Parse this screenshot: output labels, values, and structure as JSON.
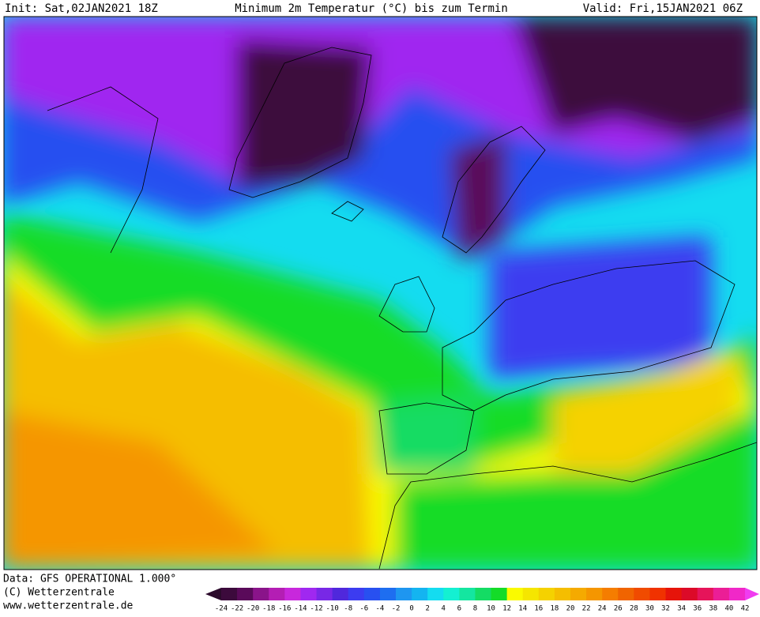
{
  "header": {
    "init": "Init: Sat,02JAN2021 18Z",
    "title": "Minimum 2m Temperatur (°C) bis zum Termin",
    "valid": "Valid: Fri,15JAN2021 06Z"
  },
  "footer": {
    "data": "Data: GFS OPERATIONAL 1.000°",
    "copyright": "(C) Wetterzentrale",
    "url": "www.wetterzentrale.de"
  },
  "legend": {
    "labels": [
      -24,
      -22,
      -20,
      -18,
      -16,
      -14,
      -12,
      -10,
      -8,
      -6,
      -4,
      -2,
      0,
      2,
      4,
      6,
      8,
      10,
      12,
      14,
      16,
      18,
      20,
      22,
      24,
      26,
      28,
      30,
      32,
      34,
      36,
      38,
      40,
      42
    ],
    "colors": [
      "#2b0a2b",
      "#3c0a3c",
      "#5a0a5a",
      "#8a148a",
      "#b41eb4",
      "#c828dc",
      "#a028f0",
      "#7828e6",
      "#5028dc",
      "#3c3cf0",
      "#2850f0",
      "#1e6ef0",
      "#1e96f0",
      "#14b4f0",
      "#14dcf0",
      "#14f0d2",
      "#14e6a0",
      "#14dc64",
      "#14dc28",
      "#fafa00",
      "#f5e600",
      "#f5d200",
      "#f5be00",
      "#f5aa00",
      "#f59600",
      "#f57d00",
      "#f06400",
      "#f04b00",
      "#f03200",
      "#e6140a",
      "#dc0a28",
      "#e6145a",
      "#eb1e96",
      "#f028c8",
      "#f03cf0"
    ]
  }
}
